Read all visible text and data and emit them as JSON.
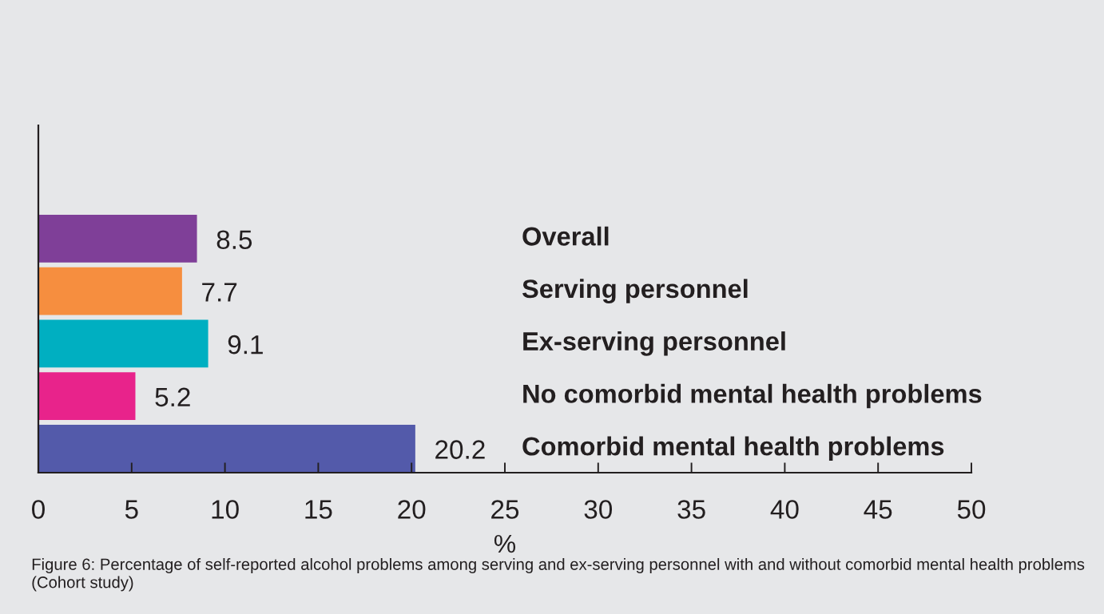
{
  "chart_data": {
    "type": "bar",
    "orientation": "horizontal",
    "categories": [
      "Overall",
      "Serving personnel",
      "Ex-serving personnel",
      "No comorbid mental health problems",
      "Comorbid mental health problems"
    ],
    "values": [
      8.5,
      7.7,
      9.1,
      5.2,
      20.2
    ],
    "colors": [
      "#7f3f98",
      "#f68e3f",
      "#00afc1",
      "#e8238b",
      "#535aaa"
    ],
    "xlim": [
      0,
      50
    ],
    "xticks": [
      0,
      5,
      10,
      15,
      20,
      25,
      30,
      35,
      40,
      45,
      50
    ],
    "xlabel": "%",
    "data_labels": true,
    "grid": false,
    "legend": false,
    "annotations": [
      "Figure 6: Percentage of self-reported alcohol problems among serving and ex-serving personnel with and without comorbid mental health problems (Cohort study)"
    ]
  }
}
